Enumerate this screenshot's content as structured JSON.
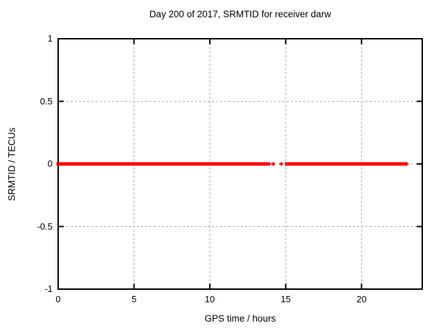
{
  "chart_data": {
    "type": "scatter",
    "title": "Day 200 of 2017, SRMTID for receiver darw",
    "xlabel": "GPS time / hours",
    "ylabel": "SRMTID / TECUs",
    "xlim": [
      0,
      24
    ],
    "ylim": [
      -1,
      1
    ],
    "xticks": [
      0,
      5,
      10,
      15,
      20
    ],
    "yticks": [
      -1,
      -0.5,
      0,
      0.5,
      1
    ],
    "xtick_labels": [
      "0",
      "5",
      "10",
      "15",
      "20"
    ],
    "ytick_labels": [
      "-1",
      "-0.5",
      "0",
      "0.5",
      "1"
    ],
    "grid": true,
    "legend_position": "none",
    "marker": "plus",
    "background_color": "#ffffff",
    "axis_color": "#000000",
    "grid_color": "#a8a8a8",
    "series": [
      {
        "name": "SRMTID",
        "color": "#ff0000",
        "y_value": 0,
        "segments_hours": [
          [
            0.0,
            3.03
          ],
          [
            3.13,
            13.73
          ],
          [
            15.06,
            15.46
          ],
          [
            15.6,
            22.81
          ]
        ],
        "isolated_points_hours": [
          13.91,
          14.18,
          14.71,
          22.97
        ]
      }
    ]
  }
}
